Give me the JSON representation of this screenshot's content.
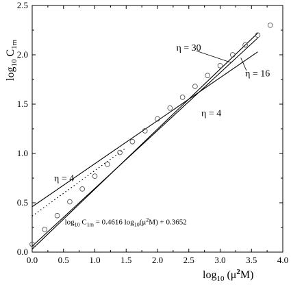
{
  "chart_data": {
    "type": "line",
    "xlabel": "log10 (μ2M)",
    "ylabel": "log10 C1m",
    "xlim": [
      0,
      4
    ],
    "ylim": [
      0,
      2.5
    ],
    "x_ticks": [
      "0.0",
      "0.5",
      "1.0",
      "1.5",
      "2.0",
      "2.5",
      "3.0",
      "3.5",
      "4.0"
    ],
    "y_ticks": [
      "0.0",
      "0.5",
      "1.0",
      "1.5",
      "2.0",
      "2.5"
    ],
    "grid": false,
    "series": [
      {
        "name": "η = 30",
        "style": "solid",
        "x": [
          0.0,
          3.6
        ],
        "y": [
          0.03,
          2.22
        ]
      },
      {
        "name": "η = 16",
        "style": "solid",
        "x": [
          0.0,
          3.6
        ],
        "y": [
          0.06,
          2.17
        ]
      },
      {
        "name": "η = 4",
        "style": "solid",
        "x": [
          0.0,
          3.6
        ],
        "y": [
          0.46,
          2.03
        ]
      },
      {
        "name": "log10 C1m = 0.4616 log10(μ2M) + 0.3652",
        "style": "dotted",
        "x": [
          0.0,
          1.5
        ],
        "y": [
          0.3652,
          1.0576
        ]
      },
      {
        "name": "data",
        "style": "markers",
        "x": [
          0.0,
          0.2,
          0.4,
          0.6,
          0.8,
          1.0,
          1.2,
          1.4,
          1.6,
          1.8,
          2.0,
          2.2,
          2.4,
          2.6,
          2.8,
          3.0,
          3.2,
          3.4,
          3.6,
          3.8
        ],
        "y": [
          0.08,
          0.23,
          0.37,
          0.51,
          0.64,
          0.77,
          0.89,
          1.01,
          1.12,
          1.23,
          1.35,
          1.46,
          1.57,
          1.68,
          1.79,
          1.89,
          2.0,
          2.1,
          2.2,
          2.3
        ]
      }
    ],
    "annotations": [
      {
        "text": "η = 30",
        "x": 2.3,
        "y": 2.04
      },
      {
        "text": "η = 16",
        "x": 3.4,
        "y": 1.78
      },
      {
        "text": "η = 4",
        "x": 2.7,
        "y": 1.38
      },
      {
        "text": "η = 4",
        "x": 0.35,
        "y": 0.72
      }
    ],
    "equation": {
      "prefix": "log",
      "sub1": "10",
      "var": " C",
      "sub2": "1m",
      "rest": " = 0.4616 log",
      "sub3": "10",
      "tail": "(μ",
      "sup": "2",
      "end": "M) + 0.3652"
    },
    "xlabel_parts": {
      "main": "log",
      "sub": "10",
      "open": " (μ",
      "sup": "2",
      "close": "M)"
    },
    "ylabel_parts": {
      "main": "log",
      "sub": "10",
      "var": " C",
      "sub2": "1m"
    }
  }
}
